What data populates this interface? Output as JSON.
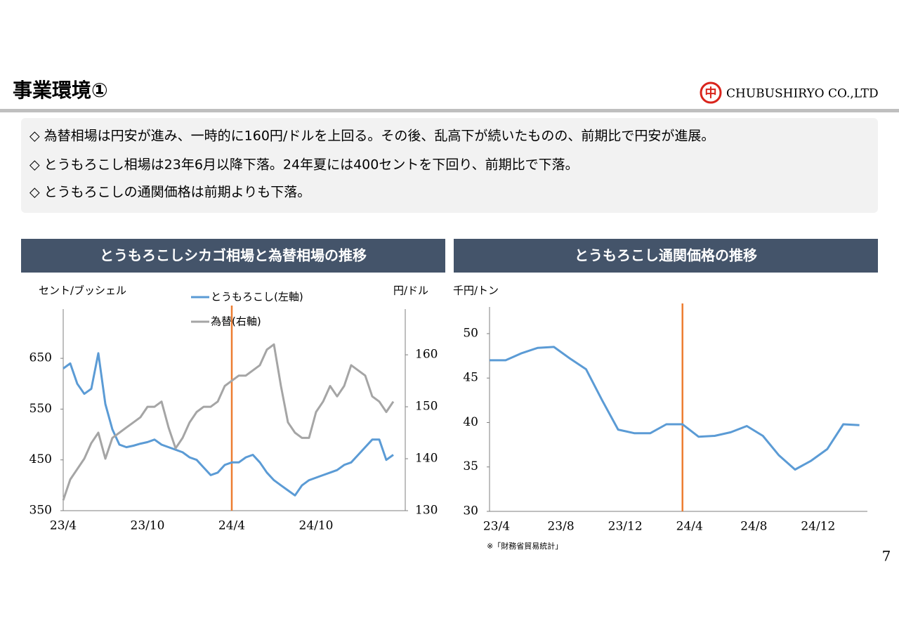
{
  "header": {
    "title": "事業環境①",
    "logo_mark": "中",
    "company": "CHUBUSHIRYO CO.,LTD"
  },
  "bullets": [
    "◇ 為替相場は円安が進み、一時的に160円/ドルを上回る。その後、乱高下が続いたものの、前期比で円安が進展。",
    "◇ とうもろこし相場は23年6月以降下落。24年夏には400セントを下回り、前期比で下落。",
    "◇ とうもろこしの通関価格は前期よりも下落。"
  ],
  "source_note": "※「財務省貿易統計」",
  "page_number": "7",
  "chart_data": [
    {
      "type": "line",
      "title": "とうもろこしシカゴ相場と為替相場の推移",
      "ylabel": "セント/ブッシェル",
      "y2label": "円/ドル",
      "categories": [
        "23/4",
        null,
        null,
        null,
        null,
        null,
        null,
        null,
        null,
        null,
        null,
        null,
        "23/10",
        null,
        null,
        null,
        null,
        null,
        null,
        null,
        null,
        null,
        null,
        null,
        "24/4",
        null,
        null,
        null,
        null,
        null,
        null,
        null,
        null,
        null,
        null,
        null,
        "24/10",
        null,
        null,
        null,
        null,
        null,
        null,
        null,
        null,
        null,
        null,
        null
      ],
      "series": [
        {
          "name": "とうもろこし(左軸)",
          "color": "#5b9bd5",
          "axis": "y",
          "values": [
            630,
            640,
            600,
            580,
            590,
            660,
            560,
            510,
            480,
            475,
            478,
            482,
            485,
            490,
            480,
            475,
            470,
            465,
            455,
            450,
            435,
            420,
            425,
            440,
            445,
            445,
            455,
            460,
            445,
            425,
            410,
            400,
            390,
            380,
            400,
            410,
            415,
            420,
            425,
            430,
            440,
            445,
            460,
            475,
            490,
            490,
            450,
            460
          ]
        },
        {
          "name": "為替(右軸)",
          "color": "#a5a5a5",
          "axis": "y2",
          "values": [
            132,
            136,
            138,
            140,
            143,
            145,
            140,
            144,
            145,
            146,
            147,
            148,
            150,
            150,
            151,
            146,
            142,
            144,
            147,
            149,
            150,
            150,
            151,
            154,
            155,
            156,
            156,
            157,
            158,
            161,
            162,
            154,
            147,
            145,
            144,
            144,
            149,
            151,
            154,
            152,
            154,
            158,
            157,
            156,
            152,
            151,
            149,
            151
          ]
        }
      ],
      "ylim": [
        350,
        747
      ],
      "yticks": [
        350,
        450,
        550,
        650
      ],
      "y2lim": [
        130,
        168.8
      ],
      "y2ticks": [
        130,
        140,
        150,
        160
      ],
      "grid": false,
      "vline": {
        "at": "24/4",
        "color": "#ed7d31"
      }
    },
    {
      "type": "line",
      "title": "とうもろこし通関価格の推移",
      "ylabel": "千円/トン",
      "categories": [
        "23/4",
        null,
        null,
        null,
        "23/8",
        null,
        null,
        null,
        "23/12",
        null,
        null,
        null,
        "24/4",
        null,
        null,
        null,
        "24/8",
        null,
        null,
        null,
        "24/12",
        null,
        null,
        null
      ],
      "series": [
        {
          "name": null,
          "color": "#5b9bd5",
          "axis": "y",
          "values": [
            47.0,
            47.0,
            47.8,
            48.4,
            48.5,
            47.2,
            46.0,
            42.5,
            39.2,
            38.8,
            38.8,
            39.8,
            39.8,
            38.4,
            38.5,
            38.9,
            39.6,
            38.5,
            36.3,
            34.7,
            35.7,
            37.0,
            39.8,
            39.7
          ]
        }
      ],
      "ylim": [
        30,
        53
      ],
      "yticks": [
        30,
        35,
        40,
        45,
        50
      ],
      "grid": false,
      "vline": {
        "at": "24/4",
        "color": "#ed7d31"
      }
    }
  ]
}
